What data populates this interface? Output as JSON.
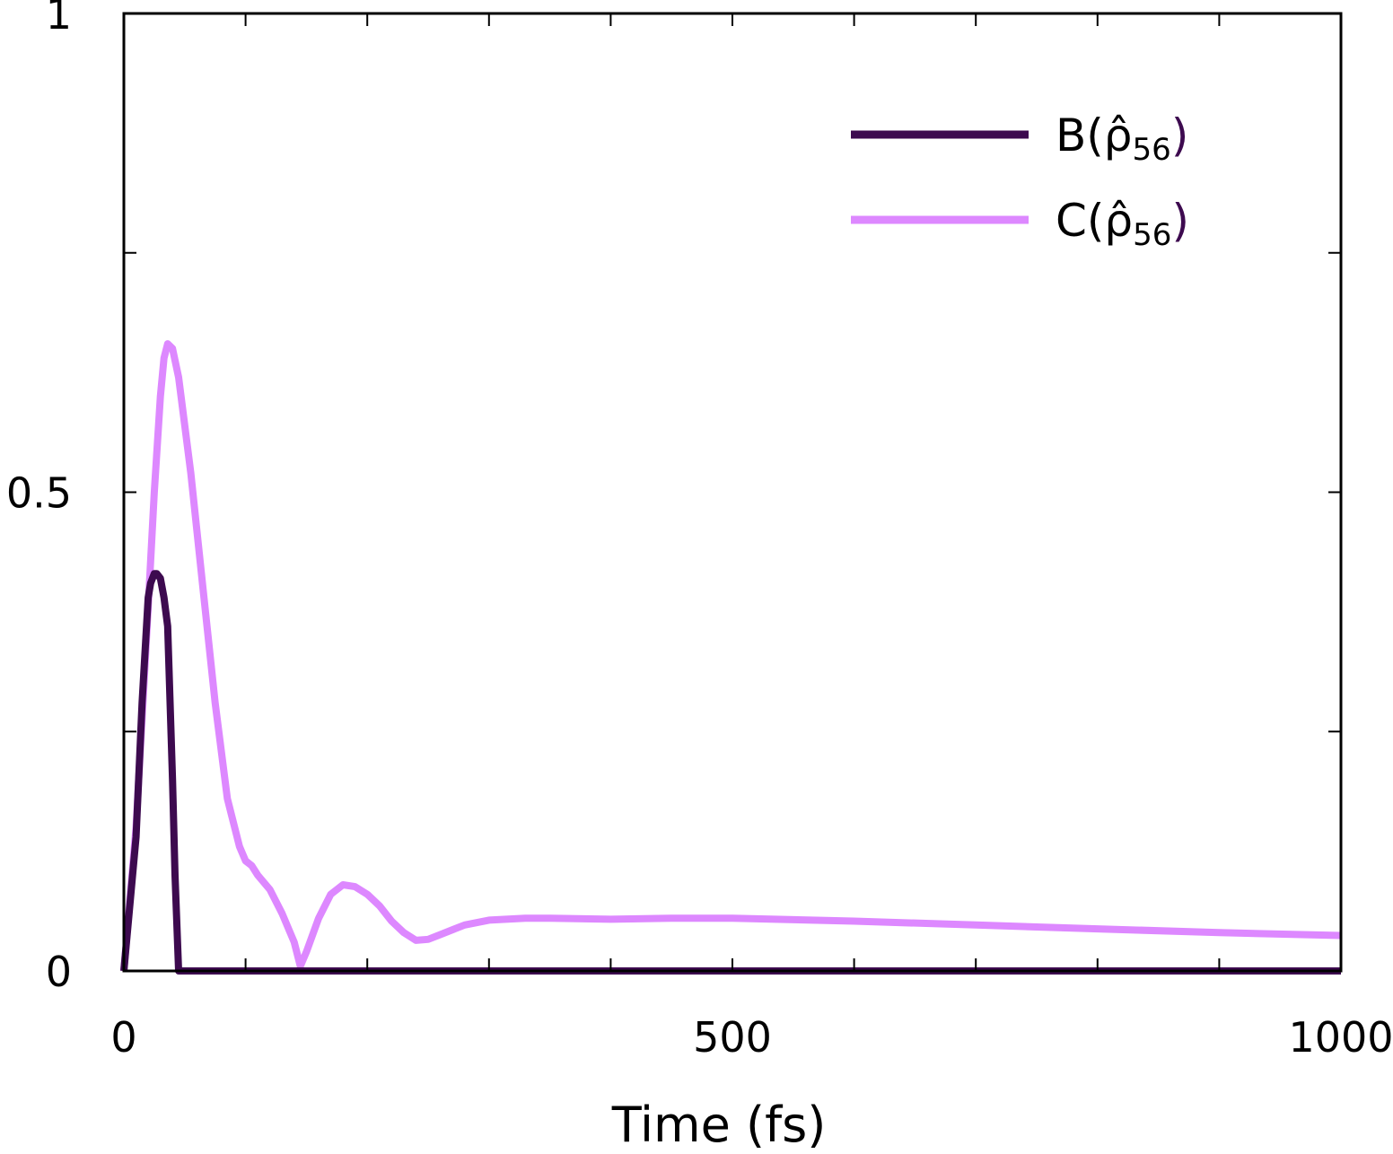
{
  "chart_data": {
    "type": "line",
    "xlabel": "Time (fs)",
    "ylabel": "",
    "xlim": [
      0,
      1000
    ],
    "ylim": [
      0,
      1
    ],
    "xticks": [
      0,
      500,
      1000
    ],
    "xticks_minor_step": 100,
    "yticks": [
      0,
      0.5,
      1
    ],
    "yticks_minor_step": 0.25,
    "x_tick_labels": [
      "0",
      "500",
      "1000"
    ],
    "y_tick_labels": [
      "0",
      "0.5",
      "1"
    ],
    "grid": false,
    "legend_position": "top-right",
    "series": [
      {
        "name": "B(ρ̂56)",
        "legend_base": "B(",
        "legend_symbol": "ρ̂",
        "legend_sub": "56",
        "legend_close": ")",
        "color": "#3d0a4f",
        "x": [
          0,
          10,
          15,
          20,
          22,
          25,
          27,
          30,
          33,
          36,
          40,
          42,
          45,
          50,
          1000
        ],
        "y": [
          0,
          0.14,
          0.28,
          0.39,
          0.405,
          0.415,
          0.415,
          0.41,
          0.39,
          0.36,
          0.2,
          0.1,
          0,
          0,
          0
        ]
      },
      {
        "name": "C(ρ̂56)",
        "legend_base": "C(",
        "legend_symbol": "ρ̂",
        "legend_sub": "56",
        "legend_close": ")",
        "color": "#dd88ff",
        "x": [
          0,
          10,
          20,
          25,
          30,
          33,
          36,
          40,
          45,
          55,
          65,
          75,
          85,
          95,
          100,
          105,
          110,
          120,
          130,
          140,
          145,
          150,
          160,
          170,
          180,
          190,
          200,
          210,
          220,
          230,
          240,
          250,
          260,
          270,
          280,
          300,
          330,
          350,
          400,
          450,
          500,
          600,
          700,
          800,
          900,
          1000
        ],
        "y": [
          0,
          0.15,
          0.38,
          0.5,
          0.6,
          0.64,
          0.655,
          0.65,
          0.62,
          0.52,
          0.4,
          0.28,
          0.18,
          0.13,
          0.115,
          0.11,
          0.1,
          0.085,
          0.06,
          0.03,
          0.005,
          0.02,
          0.055,
          0.08,
          0.09,
          0.088,
          0.08,
          0.068,
          0.052,
          0.04,
          0.032,
          0.033,
          0.038,
          0.043,
          0.048,
          0.053,
          0.055,
          0.055,
          0.054,
          0.055,
          0.055,
          0.052,
          0.048,
          0.044,
          0.04,
          0.037
        ]
      }
    ]
  }
}
